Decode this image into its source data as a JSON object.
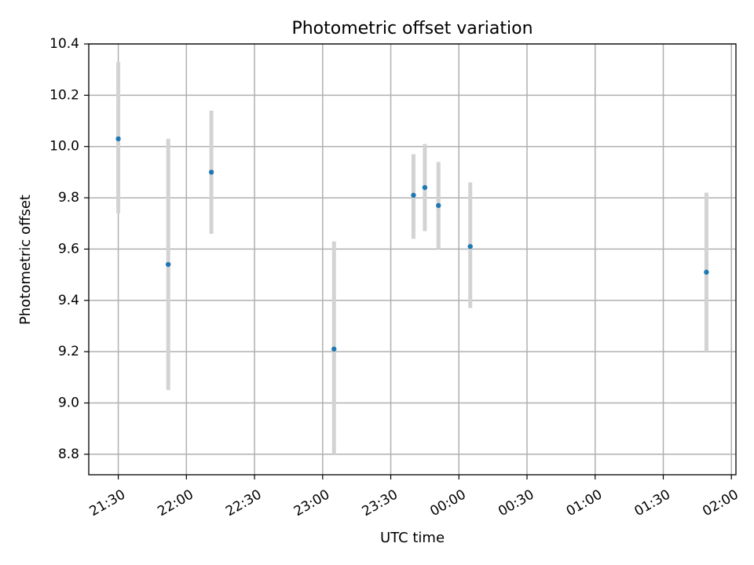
{
  "chart_data": {
    "type": "scatter",
    "title": "Photometric offset variation",
    "xlabel": "UTC time",
    "ylabel": "Photometric offset",
    "x_unit": "time (HH:MM, UTC)",
    "xlim": [
      "21:17",
      "02:02"
    ],
    "ylim": [
      8.72,
      10.4
    ],
    "xticks": [
      "21:30",
      "22:00",
      "22:30",
      "23:00",
      "23:30",
      "00:00",
      "00:30",
      "01:00",
      "01:30",
      "02:00"
    ],
    "yticks": [
      "8.8",
      "9.0",
      "9.2",
      "9.4",
      "9.6",
      "9.8",
      "10.0",
      "10.2",
      "10.4"
    ],
    "grid": true,
    "marker_color": "#1f77b4",
    "errorbar_color": "#d3d3d3",
    "points": [
      {
        "x": "21:30",
        "y": 10.03,
        "err_low": 9.74,
        "err_high": 10.33
      },
      {
        "x": "21:52",
        "y": 9.54,
        "err_low": 9.05,
        "err_high": 10.03
      },
      {
        "x": "22:11",
        "y": 9.9,
        "err_low": 9.66,
        "err_high": 10.14
      },
      {
        "x": "23:05",
        "y": 9.21,
        "err_low": 8.8,
        "err_high": 9.63
      },
      {
        "x": "23:40",
        "y": 9.81,
        "err_low": 9.64,
        "err_high": 9.97
      },
      {
        "x": "23:45",
        "y": 9.84,
        "err_low": 9.67,
        "err_high": 10.01
      },
      {
        "x": "23:51",
        "y": 9.77,
        "err_low": 9.6,
        "err_high": 9.94
      },
      {
        "x": "00:05",
        "y": 9.61,
        "err_low": 9.37,
        "err_high": 9.86
      },
      {
        "x": "01:49",
        "y": 9.51,
        "err_low": 9.2,
        "err_high": 9.82
      }
    ]
  }
}
